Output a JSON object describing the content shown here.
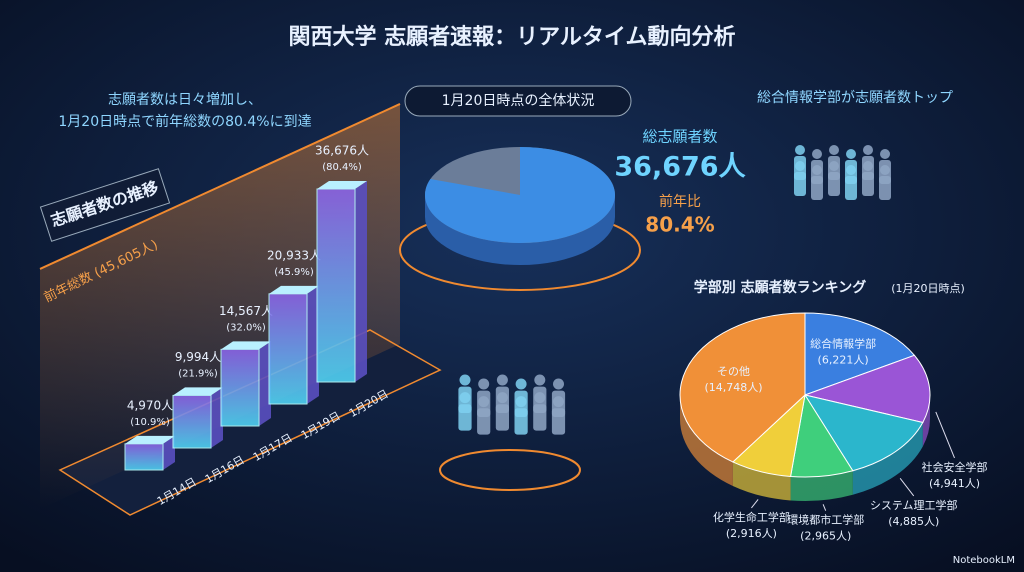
{
  "title": "関西大学 志願者速報：リアルタイム動向分析",
  "headline": [
    "志願者数は日々増加し、",
    "1月20日時点で前年総数の80.4%に到達"
  ],
  "trend_heading": "志願者数の推移",
  "overview": {
    "heading": "1月20日時点の全体状況",
    "total_label": "総志願者数",
    "total": "36,676人",
    "ratio_label": "前年比",
    "ratio": {
      "value": 80.4,
      "label": "80.4%"
    },
    "color": "#3a8ee8"
  },
  "top_note": "総合情報学部が志願者数トップ",
  "footer": "NotebookLM",
  "chart_data": [
    {
      "type": "bar",
      "categories": [
        "1月14日",
        "1月16日",
        "1月17日",
        "1月19日",
        "1月20日"
      ],
      "values": [
        4970,
        9994,
        14567,
        20933,
        36676
      ],
      "value_labels": [
        "4,970人",
        "9,994人",
        "14,567人",
        "20,933人",
        "36,676人"
      ],
      "shares": [
        {
          "value": 10.9,
          "label": "(10.9%)"
        },
        {
          "value": 21.9,
          "label": "(21.9%)"
        },
        {
          "value": 32.0,
          "label": "(32.0%)"
        },
        {
          "value": 45.9,
          "label": "(45.9%)"
        },
        {
          "value": 80.4,
          "label": "(80.4%)"
        }
      ],
      "reference": {
        "value": 45605,
        "label": "前年総数 (45,605人)"
      },
      "color": "#5fd3f5"
    },
    {
      "type": "pie",
      "title": "学部別 志願者数ランキング",
      "subtitle": "(1月20日時点)",
      "categories": [
        "総合情報学部",
        "社会安全学部",
        "システム理工学部",
        "環境都市工学部",
        "化学生命工学部",
        "その他"
      ],
      "values": [
        6221,
        4941,
        4885,
        2965,
        2916,
        14748
      ],
      "value_labels": [
        "(6,221人)",
        "(4,941人)",
        "(4,885人)",
        "(2,965人)",
        "(2,916人)",
        "(14,748人)"
      ],
      "colors": [
        "#3a7fe0",
        "#9a55d6",
        "#2bb6cc",
        "#3fcf7c",
        "#f0cf3a",
        "#f09038"
      ]
    }
  ]
}
